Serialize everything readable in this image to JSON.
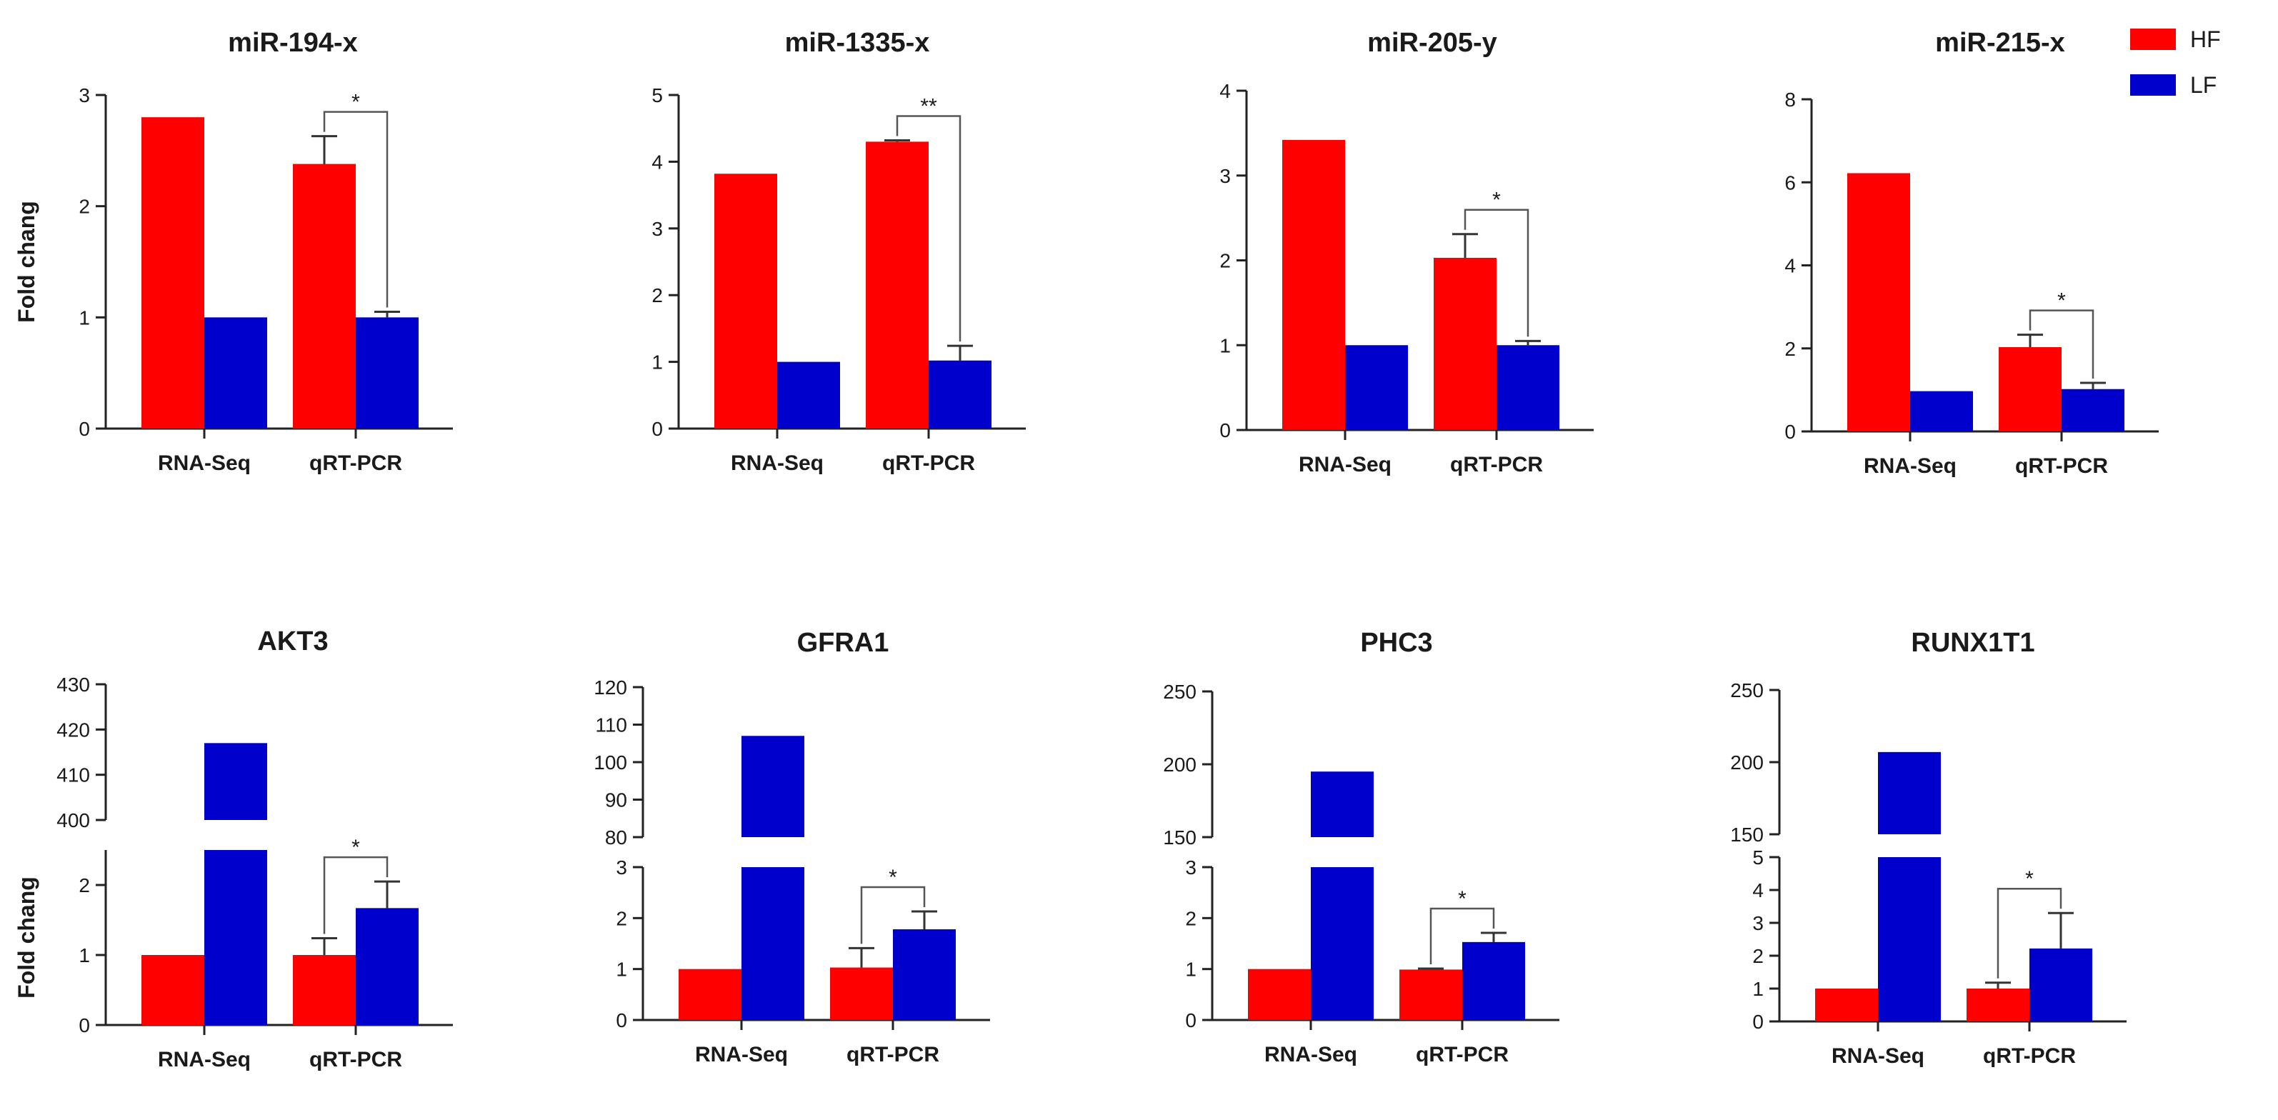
{
  "legend": [
    {
      "label": "HF",
      "color": "#ff0000"
    },
    {
      "label": "LF",
      "color": "#0000cc"
    }
  ],
  "chart_data": [
    {
      "type": "bar",
      "title": "miR-194-x",
      "ylabel": "Fold chang",
      "categories": [
        "RNA-Seq",
        "qRT-PCR"
      ],
      "series": [
        {
          "name": "HF",
          "values": [
            2.8,
            2.38
          ],
          "errors": [
            0,
            0.25
          ]
        },
        {
          "name": "LF",
          "values": [
            1.0,
            1.0
          ],
          "errors": [
            0,
            0.05
          ]
        }
      ],
      "ylim": [
        0,
        3
      ],
      "yticks": [
        0,
        1,
        2,
        3
      ],
      "significance": [
        {
          "category": "qRT-PCR",
          "label": "*"
        }
      ]
    },
    {
      "type": "bar",
      "title": "miR-1335-x",
      "ylabel": "",
      "categories": [
        "RNA-Seq",
        "qRT-PCR"
      ],
      "series": [
        {
          "name": "HF",
          "values": [
            3.82,
            4.3
          ],
          "errors": [
            0,
            0.02
          ]
        },
        {
          "name": "LF",
          "values": [
            1.0,
            1.02
          ],
          "errors": [
            0,
            0.22
          ]
        }
      ],
      "ylim": [
        0,
        5
      ],
      "yticks": [
        0,
        1,
        2,
        3,
        4,
        5
      ],
      "significance": [
        {
          "category": "qRT-PCR",
          "label": "**"
        }
      ]
    },
    {
      "type": "bar",
      "title": "miR-205-y",
      "ylabel": "",
      "categories": [
        "RNA-Seq",
        "qRT-PCR"
      ],
      "series": [
        {
          "name": "HF",
          "values": [
            3.42,
            2.03
          ],
          "errors": [
            0,
            0.28
          ]
        },
        {
          "name": "LF",
          "values": [
            1.0,
            1.0
          ],
          "errors": [
            0,
            0.05
          ]
        }
      ],
      "ylim": [
        0,
        4
      ],
      "yticks": [
        0,
        1,
        2,
        3,
        4
      ],
      "significance": [
        {
          "category": "qRT-PCR",
          "label": "*"
        }
      ]
    },
    {
      "type": "bar",
      "title": "miR-215-x",
      "ylabel": "",
      "categories": [
        "RNA-Seq",
        "qRT-PCR"
      ],
      "series": [
        {
          "name": "HF",
          "values": [
            6.22,
            2.03
          ],
          "errors": [
            0,
            0.3
          ]
        },
        {
          "name": "LF",
          "values": [
            0.97,
            1.02
          ],
          "errors": [
            0,
            0.15
          ]
        }
      ],
      "ylim": [
        0,
        8
      ],
      "yticks": [
        0,
        2,
        4,
        6,
        8
      ],
      "significance": [
        {
          "category": "qRT-PCR",
          "label": "*"
        }
      ]
    },
    {
      "type": "bar",
      "title": "AKT3",
      "ylabel": "Fold chang",
      "categories": [
        "RNA-Seq",
        "qRT-PCR"
      ],
      "series": [
        {
          "name": "HF",
          "values": [
            1.0,
            1.0
          ],
          "errors": [
            0,
            0.24
          ]
        },
        {
          "name": "LF",
          "values": [
            417,
            1.67
          ],
          "errors": [
            0,
            0.38
          ]
        }
      ],
      "axis_break": {
        "lower": [
          0,
          2.5
        ],
        "upper": [
          400,
          430
        ]
      },
      "yticks_lower": [
        0,
        1,
        2
      ],
      "yticks_upper": [
        400,
        410,
        420,
        430
      ],
      "significance": [
        {
          "category": "qRT-PCR",
          "label": "*"
        }
      ]
    },
    {
      "type": "bar",
      "title": "GFRA1",
      "ylabel": "",
      "categories": [
        "RNA-Seq",
        "qRT-PCR"
      ],
      "series": [
        {
          "name": "HF",
          "values": [
            1.0,
            1.03
          ],
          "errors": [
            0,
            0.38
          ]
        },
        {
          "name": "LF",
          "values": [
            107,
            1.78
          ],
          "errors": [
            0,
            0.35
          ]
        }
      ],
      "axis_break": {
        "lower": [
          0,
          3
        ],
        "upper": [
          80,
          120
        ]
      },
      "yticks_lower": [
        0,
        1,
        2,
        3
      ],
      "yticks_upper": [
        80,
        90,
        100,
        110,
        120
      ],
      "significance": [
        {
          "category": "qRT-PCR",
          "label": "*"
        }
      ]
    },
    {
      "type": "bar",
      "title": "PHC3",
      "ylabel": "",
      "categories": [
        "RNA-Seq",
        "qRT-PCR"
      ],
      "series": [
        {
          "name": "HF",
          "values": [
            1.0,
            0.99
          ],
          "errors": [
            0,
            0.02
          ]
        },
        {
          "name": "LF",
          "values": [
            195,
            1.53
          ],
          "errors": [
            0,
            0.18
          ]
        }
      ],
      "axis_break": {
        "lower": [
          0,
          3
        ],
        "upper": [
          150,
          250
        ]
      },
      "yticks_lower": [
        0,
        1,
        2,
        3
      ],
      "yticks_upper": [
        150,
        200,
        250
      ],
      "significance": [
        {
          "category": "qRT-PCR",
          "label": "*"
        }
      ]
    },
    {
      "type": "bar",
      "title": "RUNX1T1",
      "ylabel": "",
      "categories": [
        "RNA-Seq",
        "qRT-PCR"
      ],
      "series": [
        {
          "name": "HF",
          "values": [
            1.0,
            1.0
          ],
          "errors": [
            0,
            0.18
          ]
        },
        {
          "name": "LF",
          "values": [
            207,
            2.22
          ],
          "errors": [
            0,
            1.08
          ]
        }
      ],
      "axis_break": {
        "lower": [
          0,
          5
        ],
        "upper": [
          150,
          250
        ]
      },
      "yticks_lower": [
        0,
        1,
        2,
        3,
        4,
        5
      ],
      "yticks_upper": [
        150,
        200,
        250
      ],
      "significance": [
        {
          "category": "qRT-PCR",
          "label": "*"
        }
      ]
    }
  ]
}
